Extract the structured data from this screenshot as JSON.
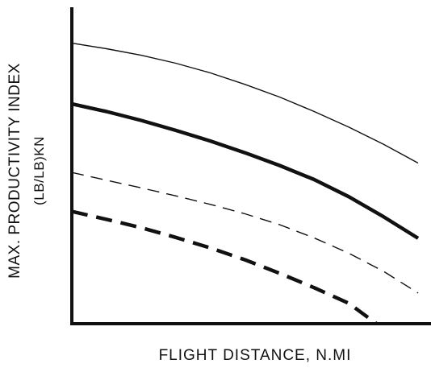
{
  "chart_data": {
    "type": "line",
    "title": "",
    "xlabel": "FLIGHT DISTANCE, N.MI",
    "ylabel": "MAX. PRODUCTIVITY INDEX",
    "ylabel_units": "(LB/LB)KN",
    "xlim": [
      0,
      100
    ],
    "ylim": [
      0,
      100
    ],
    "grid": false,
    "legend": "none",
    "tick_labels": false,
    "colors": {
      "ink": "#111111",
      "background": "#ffffff"
    },
    "series": [
      {
        "style": "thin-solid",
        "x": [
          0,
          10,
          20,
          30,
          40,
          50,
          60,
          70,
          80,
          90,
          100
        ],
        "y": [
          95.2,
          93.3,
          91.1,
          88.4,
          85.1,
          81.2,
          76.9,
          72.0,
          66.7,
          60.9,
          54.5
        ]
      },
      {
        "style": "thick-solid",
        "x": [
          0,
          10,
          20,
          30,
          40,
          50,
          60,
          70,
          80,
          90,
          100
        ],
        "y": [
          74.6,
          72.0,
          69.0,
          65.6,
          62.0,
          58.0,
          53.7,
          48.9,
          43.1,
          36.3,
          29.0
        ]
      },
      {
        "style": "thin-dashed",
        "x": [
          0,
          10,
          20,
          30,
          40,
          50,
          60,
          70,
          80,
          90,
          100
        ],
        "y": [
          51.3,
          48.7,
          46.1,
          43.4,
          40.5,
          37.3,
          33.6,
          29.1,
          23.9,
          17.8,
          10.4
        ]
      },
      {
        "style": "thick-dashed",
        "x": [
          0,
          10,
          20,
          30,
          40,
          50,
          60,
          70,
          80,
          88
        ],
        "y": [
          38.1,
          35.4,
          32.6,
          29.3,
          25.7,
          21.7,
          17.1,
          12.2,
          6.9,
          0
        ]
      }
    ]
  }
}
